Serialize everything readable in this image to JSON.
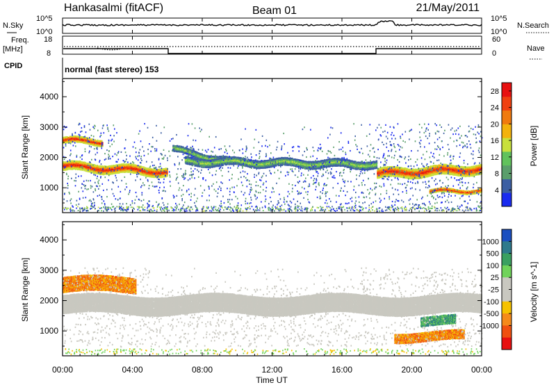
{
  "header": {
    "station": "Hankasalmi (fitACF)",
    "beam": "Beam 01",
    "date": "21/May/2011"
  },
  "top_panels": {
    "nsky_label": "N.Sky",
    "nsky_ticks": [
      "10^5",
      "10^0"
    ],
    "nsearch_label": "N.Search",
    "nsearch_ticks": [
      "10^5",
      "10^0"
    ],
    "freq_label": "Freq.",
    "freq_unit": "[MHz]",
    "freq_ticks": [
      "18",
      "8"
    ],
    "nave_label": "Nave",
    "nave_ticks": [
      "60",
      "0"
    ],
    "cpid_label": "CPID",
    "cpid_text": "normal (fast stereo) 153"
  },
  "colors": {
    "power": [
      "#1a2bf0",
      "#3c5fa3",
      "#5a9e6b",
      "#61c25c",
      "#c8e03c",
      "#f3b20c",
      "#f07a0e",
      "#f04010",
      "#e81010"
    ],
    "velocity_neg": [
      "#e81010",
      "#f05010",
      "#f58a1a",
      "#f6c200"
    ],
    "velocity_zero": "#c9c8c0",
    "velocity_pos": [
      "#70d35a",
      "#3aa060",
      "#2e7a8c",
      "#1b4fc0"
    ]
  },
  "chart_data": [
    {
      "type": "heatmap",
      "title": "",
      "xlabel": "Time UT",
      "ylabel": "Slant Range [km]",
      "x_ticks": [
        "00:00",
        "04:00",
        "08:00",
        "12:00",
        "16:00",
        "20:00",
        "00:00"
      ],
      "xlim_hours": [
        0,
        24
      ],
      "ylim_km": [
        180,
        4600
      ],
      "y_ticks": [
        1000,
        2000,
        3000,
        4000
      ],
      "colorbar_label": "Power [dB]",
      "colorbar_ticks": [
        "4",
        "8",
        "12",
        "16",
        "20",
        "24",
        "28"
      ],
      "colorbar_range": [
        0,
        30
      ],
      "bands": [
        {
          "t0": 0,
          "t1": 6,
          "r_start": 1750,
          "r_end": 1550,
          "width": 280,
          "level": "high"
        },
        {
          "t0": 0,
          "t1": 2.3,
          "r_start": 2600,
          "r_end": 2550,
          "width": 200,
          "level": "high"
        },
        {
          "t0": 6.3,
          "t1": 10,
          "r_start": 2300,
          "r_end": 1850,
          "width": 200,
          "level": "mid"
        },
        {
          "t0": 7,
          "t1": 18,
          "r_start": 1900,
          "r_end": 1800,
          "width": 250,
          "level": "mid"
        },
        {
          "t0": 18,
          "t1": 24,
          "r_start": 1500,
          "r_end": 1650,
          "width": 320,
          "level": "high"
        },
        {
          "t0": 21,
          "t1": 24,
          "r_start": 900,
          "r_end": 950,
          "width": 120,
          "level": "high"
        }
      ]
    },
    {
      "type": "heatmap",
      "title": "",
      "xlabel": "Time UT",
      "ylabel": "Slant Range [km]",
      "x_ticks": [
        "00:00",
        "04:00",
        "08:00",
        "12:00",
        "16:00",
        "20:00",
        "00:00"
      ],
      "xlim_hours": [
        0,
        24
      ],
      "ylim_km": [
        180,
        4600
      ],
      "y_ticks": [
        1000,
        2000,
        3000,
        4000
      ],
      "colorbar_label": "Velocity [m s^-1]",
      "colorbar_ticks": [
        "1000",
        "500",
        "100",
        "25",
        "-25",
        "-100",
        "-500",
        "-1000"
      ],
      "features": [
        {
          "t0": 0,
          "t1": 4.2,
          "r0": 2300,
          "r1": 2800,
          "velocity": "-500"
        },
        {
          "t0": 0,
          "t1": 24,
          "r0": 1600,
          "r1": 2200,
          "velocity": "0"
        },
        {
          "t0": 20.5,
          "t1": 22.5,
          "r0": 1200,
          "r1": 1500,
          "velocity": "500"
        },
        {
          "t0": 19,
          "t1": 23,
          "r0": 700,
          "r1": 1000,
          "velocity": "-500"
        }
      ]
    }
  ]
}
